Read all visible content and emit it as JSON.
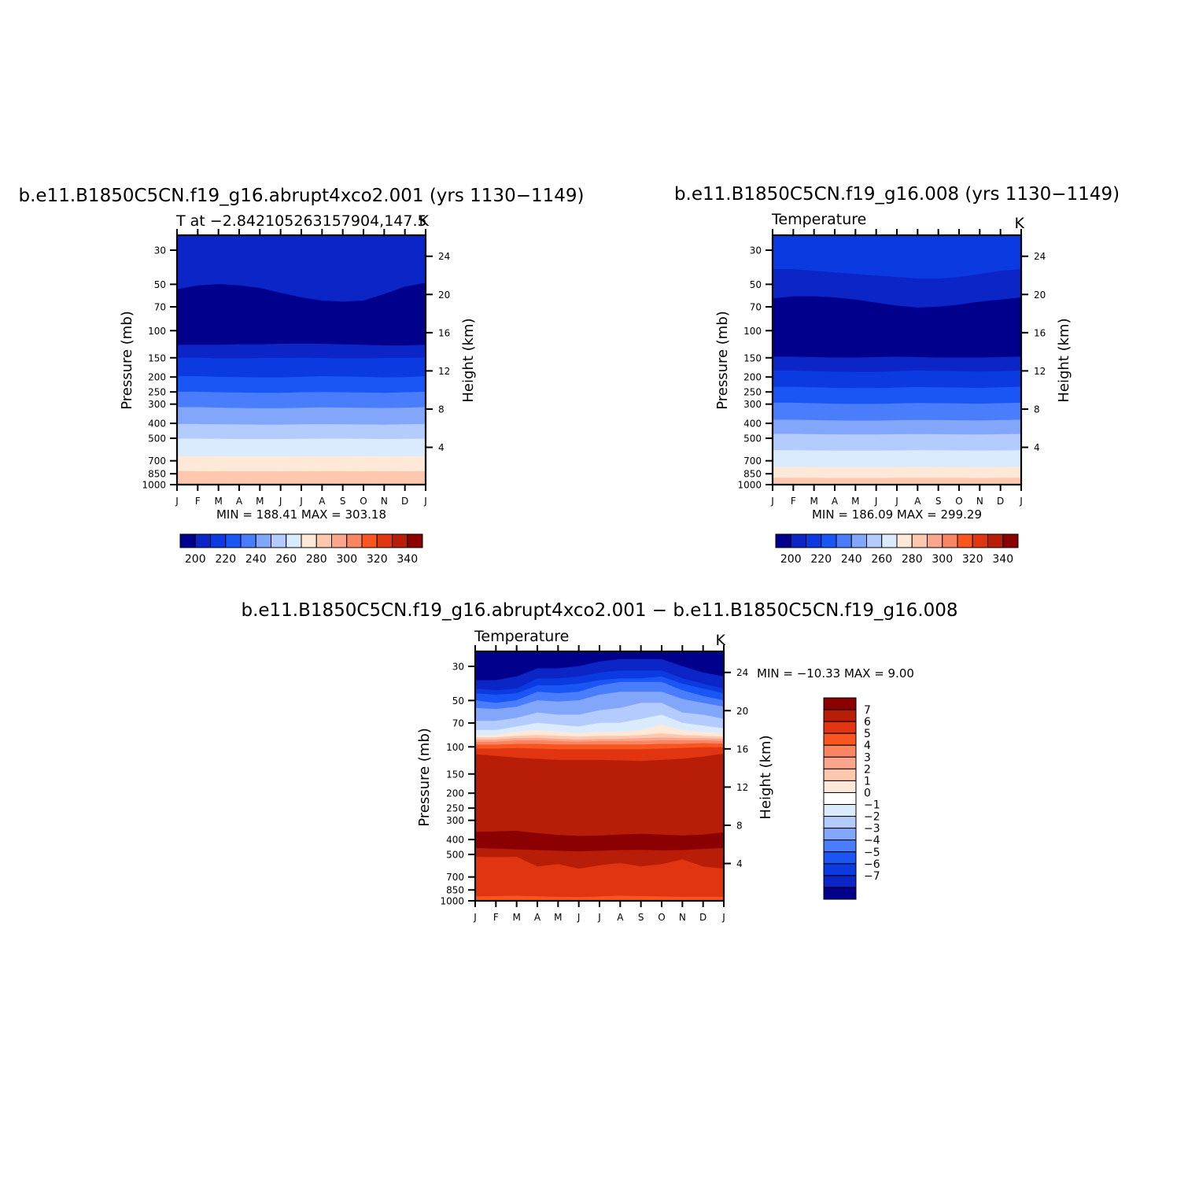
{
  "chart_data": [
    {
      "type": "contour",
      "title": "b.e11.B1850C5CN.f19_g16.abrupt4xco2.001 (yrs 1130−1149)",
      "left_label": "T at −2.842105263157904,147.5",
      "right_label": "K",
      "ylabel": "Pressure (mb)",
      "y2label": "Height (km)",
      "stats": "MIN =  188.41  MAX =  303.18",
      "months": [
        "J",
        "F",
        "M",
        "A",
        "M",
        "J",
        "J",
        "A",
        "S",
        "O",
        "N",
        "D",
        "J"
      ],
      "pressure_ticks": [
        30,
        50,
        70,
        100,
        150,
        200,
        250,
        300,
        400,
        500,
        700,
        850,
        1000
      ],
      "height_ticks": [
        24,
        20,
        16,
        12,
        8,
        4
      ],
      "colorbar_labels": [
        "200",
        "220",
        "240",
        "260",
        "280",
        "300",
        "320",
        "340"
      ],
      "boundaries": [
        {
          "level": 195,
          "p": [
            54,
            51,
            50,
            51,
            53,
            57,
            61,
            64,
            65,
            64,
            58,
            52,
            49
          ]
        },
        {
          "level": 200,
          "p": [
            124,
            124,
            124,
            123,
            123,
            122,
            122,
            122,
            123,
            124,
            125,
            125,
            124
          ]
        },
        {
          "level": 205,
          "p": [
            150,
            150,
            152,
            152,
            151,
            151,
            150,
            151,
            152,
            152,
            151,
            151,
            150
          ]
        },
        {
          "level": 210,
          "p": [
            198,
            198,
            200,
            201,
            202,
            202,
            200,
            198,
            199,
            200,
            202,
            201,
            198
          ]
        },
        {
          "level": 215,
          "p": [
            250,
            250,
            252,
            253,
            254,
            254,
            252,
            251,
            252,
            253,
            254,
            252,
            250
          ]
        },
        {
          "level": 220,
          "p": [
            315,
            315,
            317,
            319,
            320,
            320,
            318,
            316,
            317,
            318,
            319,
            317,
            315
          ]
        },
        {
          "level": 225,
          "p": [
            405,
            405,
            407,
            408,
            409,
            409,
            407,
            406,
            407,
            408,
            409,
            407,
            405
          ]
        },
        {
          "level": 230,
          "p": [
            505,
            505,
            506,
            507,
            507,
            507,
            506,
            505,
            505,
            506,
            507,
            506,
            505
          ]
        },
        {
          "level": 235,
          "p": [
            655,
            655,
            656,
            657,
            657,
            657,
            656,
            655,
            655,
            656,
            657,
            656,
            655
          ]
        },
        {
          "level": 240,
          "p": [
            820,
            820,
            822,
            823,
            823,
            823,
            822,
            820,
            820,
            822,
            823,
            822,
            820
          ]
        },
        {
          "level": 245,
          "p": [
            985,
            985,
            986,
            987,
            986,
            985,
            984,
            985,
            986,
            987,
            986,
            985,
            985
          ]
        }
      ],
      "band_colors": [
        "#0b25c7",
        "#00008c",
        "#0b25c7",
        "#0a3ae0",
        "#1a55f5",
        "#4a7dfc",
        "#82a6fa",
        "#b3ccfd",
        "#dbebfe",
        "#fee8d8",
        "#fdc8ad",
        "#fba68c",
        "#fa8562"
      ],
      "min": 188.41,
      "max": 303.18
    },
    {
      "type": "contour",
      "title": "b.e11.B1850C5CN.f19_g16.008 (yrs 1130−1149)",
      "left_label": "Temperature",
      "right_label": "K",
      "ylabel": "Pressure (mb)",
      "y2label": "Height (km)",
      "stats": "MIN =  186.09  MAX =  299.29",
      "months": [
        "J",
        "F",
        "M",
        "A",
        "M",
        "J",
        "J",
        "A",
        "S",
        "O",
        "N",
        "D",
        "J"
      ],
      "pressure_ticks": [
        30,
        50,
        70,
        100,
        150,
        200,
        250,
        300,
        400,
        500,
        700,
        850,
        1000
      ],
      "height_ticks": [
        24,
        20,
        16,
        12,
        8,
        4
      ],
      "colorbar_labels": [
        "200",
        "220",
        "240",
        "260",
        "280",
        "300",
        "320",
        "340"
      ],
      "boundaries": [
        {
          "level": 200,
          "p": [
            40,
            40,
            41,
            42,
            43,
            44,
            45,
            46,
            46,
            45,
            43,
            41,
            40
          ]
        },
        {
          "level": 195,
          "p": [
            62,
            60,
            60,
            61,
            63,
            66,
            69,
            71,
            70,
            68,
            65,
            63,
            61
          ]
        },
        {
          "level": 200,
          "p": [
            148,
            148,
            149,
            150,
            150,
            149,
            148,
            149,
            150,
            150,
            150,
            149,
            148
          ]
        },
        {
          "level": 205,
          "p": [
            182,
            182,
            184,
            185,
            186,
            186,
            184,
            182,
            183,
            184,
            185,
            184,
            182
          ]
        },
        {
          "level": 210,
          "p": [
            232,
            232,
            234,
            236,
            237,
            237,
            235,
            233,
            234,
            235,
            236,
            234,
            232
          ]
        },
        {
          "level": 215,
          "p": [
            295,
            295,
            297,
            299,
            300,
            300,
            298,
            296,
            297,
            298,
            299,
            297,
            295
          ]
        },
        {
          "level": 220,
          "p": [
            380,
            380,
            382,
            384,
            385,
            385,
            383,
            381,
            382,
            383,
            384,
            382,
            380
          ]
        },
        {
          "level": 225,
          "p": [
            470,
            470,
            472,
            473,
            474,
            474,
            472,
            471,
            472,
            473,
            474,
            472,
            470
          ]
        },
        {
          "level": 230,
          "p": [
            600,
            600,
            602,
            603,
            603,
            603,
            602,
            600,
            601,
            602,
            603,
            602,
            600
          ]
        },
        {
          "level": 235,
          "p": [
            770,
            770,
            772,
            773,
            773,
            773,
            772,
            770,
            771,
            772,
            773,
            772,
            770
          ]
        },
        {
          "level": 240,
          "p": [
            905,
            905,
            907,
            908,
            908,
            908,
            907,
            905,
            906,
            907,
            908,
            907,
            905
          ]
        }
      ],
      "band_colors": [
        "#0a3ae0",
        "#0b25c7",
        "#00008c",
        "#0b25c7",
        "#0a3ae0",
        "#1a55f5",
        "#4a7dfc",
        "#82a6fa",
        "#b3ccfd",
        "#dbebfe",
        "#fee8d8",
        "#fdc8ad",
        "#fba68c"
      ],
      "min": 186.09,
      "max": 299.29
    },
    {
      "type": "contour",
      "title": "b.e11.B1850C5CN.f19_g16.abrupt4xco2.001 − b.e11.B1850C5CN.f19_g16.008",
      "left_label": "Temperature",
      "right_label": "K",
      "ylabel": "Pressure (mb)",
      "y2label": "Height (km)",
      "stats": "MIN = −10.33 MAX =     9.00",
      "months": [
        "J",
        "F",
        "M",
        "A",
        "M",
        "J",
        "J",
        "A",
        "S",
        "O",
        "N",
        "D",
        "J"
      ],
      "pressure_ticks": [
        30,
        50,
        70,
        100,
        150,
        200,
        250,
        300,
        400,
        500,
        700,
        850,
        1000
      ],
      "height_ticks": [
        24,
        20,
        16,
        12,
        8,
        4
      ],
      "colorbar_labels": [
        "7",
        "6",
        "5",
        "4",
        "3",
        "2",
        "1",
        "0",
        "−1",
        "−2",
        "−3",
        "−4",
        "−5",
        "−6",
        "−7"
      ],
      "boundaries": [
        {
          "level": -7,
          "p": [
            37,
            37,
            35,
            31,
            31,
            30,
            28,
            27,
            27,
            27,
            30,
            33,
            35
          ]
        },
        {
          "level": -6,
          "p": [
            42,
            43,
            42,
            36,
            36,
            35,
            33,
            32,
            32,
            32,
            36,
            39,
            42
          ]
        },
        {
          "level": -5,
          "p": [
            45,
            46,
            45,
            40,
            40,
            39,
            37,
            36,
            36,
            35,
            39,
            42,
            45
          ]
        },
        {
          "level": -4,
          "p": [
            50,
            52,
            50,
            44,
            45,
            44,
            40,
            38,
            38,
            38,
            43,
            47,
            50
          ]
        },
        {
          "level": -3,
          "p": [
            56,
            57,
            55,
            50,
            51,
            50,
            46,
            44,
            44,
            44,
            49,
            52,
            55
          ]
        },
        {
          "level": -2,
          "p": [
            68,
            68,
            65,
            60,
            62,
            62,
            58,
            56,
            52,
            52,
            60,
            62,
            66
          ]
        },
        {
          "level": -1,
          "p": [
            78,
            78,
            74,
            70,
            72,
            74,
            70,
            70,
            66,
            62,
            70,
            73,
            76
          ]
        },
        {
          "level": 0,
          "p": [
            84,
            84,
            80,
            78,
            80,
            82,
            80,
            80,
            78,
            72,
            78,
            80,
            82
          ]
        },
        {
          "level": 1,
          "p": [
            87,
            87,
            85,
            84,
            85,
            86,
            85,
            85,
            84,
            82,
            84,
            85,
            86
          ]
        },
        {
          "level": 2,
          "p": [
            90,
            90,
            88,
            88,
            89,
            90,
            89,
            89,
            88,
            87,
            88,
            88,
            89
          ]
        },
        {
          "level": 3,
          "p": [
            93,
            93,
            91,
            91,
            92,
            93,
            92,
            92,
            92,
            91,
            91,
            91,
            92
          ]
        },
        {
          "level": 4,
          "p": [
            97,
            97,
            96,
            96,
            97,
            97,
            97,
            97,
            97,
            96,
            96,
            95,
            96
          ]
        },
        {
          "level": 5,
          "p": [
            103,
            103,
            102,
            103,
            104,
            104,
            104,
            104,
            104,
            103,
            102,
            101,
            101
          ]
        },
        {
          "level": 6,
          "p": [
            112,
            115,
            118,
            120,
            122,
            122,
            122,
            123,
            124,
            122,
            120,
            116,
            111
          ]
        },
        {
          "level": 7,
          "p": [
            358,
            355,
            352,
            365,
            375,
            380,
            378,
            372,
            368,
            372,
            378,
            372,
            360
          ]
        },
        {
          "level": 6,
          "p": [
            455,
            460,
            465,
            470,
            475,
            478,
            475,
            470,
            468,
            472,
            470,
            462,
            455
          ]
        },
        {
          "level": 5,
          "p": [
            520,
            522,
            520,
            600,
            580,
            620,
            590,
            570,
            600,
            580,
            540,
            600,
            620
          ]
        },
        {
          "level": 4,
          "p": [
            940,
            935,
            930,
            938,
            945,
            950,
            940,
            930,
            935,
            940,
            945,
            945,
            945
          ]
        }
      ],
      "band_colors": [
        "#00008c",
        "#0b25c7",
        "#0a3ae0",
        "#1a55f5",
        "#4a7dfc",
        "#82a6fa",
        "#b3ccfd",
        "#dbebfe",
        "#fee8d8",
        "#fdc8ad",
        "#fba68c",
        "#fa8562",
        "#f8551f",
        "#e03510",
        "#b81d08",
        "#8b0000",
        "#b81d08",
        "#e03510",
        "#f8551f"
      ],
      "min": -10.33,
      "max": 9.0
    }
  ]
}
